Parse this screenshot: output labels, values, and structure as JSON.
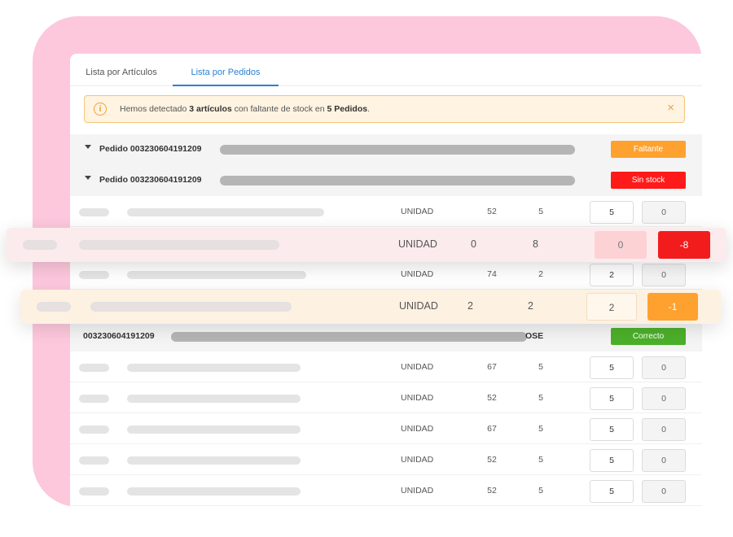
{
  "tabs": [
    {
      "label": "Lista por Artículos"
    },
    {
      "label": "Lista por Pedidos"
    }
  ],
  "alert": {
    "icon": "info-icon",
    "text_before": "Hemos detectado ",
    "count_bold": "3 artículos",
    "text_middle": " con faltante de stock en ",
    "orders_bold": "5 Pedidos",
    "text_after": ".",
    "close_icon": "×"
  },
  "orders": [
    {
      "label": "Pedido 003230604191209",
      "status": "Faltante",
      "status_color": "#ffa12f"
    },
    {
      "label": "Pedido 003230604191209",
      "status": "Sin stock",
      "status_color": "#ff1a1a"
    },
    {
      "label": "003230604191209",
      "suffix": "OSE",
      "status": "Correcto",
      "status_color": "#4caf2a"
    }
  ],
  "rows": [
    {
      "unit": "UNIDAD",
      "n1": "52",
      "n2": "5",
      "v1": "5",
      "v2": "0"
    },
    {
      "unit": "UNIDAD",
      "n1": "74",
      "n2": "2",
      "v1": "2",
      "v2": "0"
    },
    {
      "unit": "UNIDAD",
      "n1": "67",
      "n2": "5",
      "v1": "5",
      "v2": "0"
    },
    {
      "unit": "UNIDAD",
      "n1": "52",
      "n2": "5",
      "v1": "5",
      "v2": "0"
    },
    {
      "unit": "UNIDAD",
      "n1": "67",
      "n2": "5",
      "v1": "5",
      "v2": "0"
    },
    {
      "unit": "UNIDAD",
      "n1": "52",
      "n2": "5",
      "v1": "5",
      "v2": "0"
    },
    {
      "unit": "UNIDAD",
      "n1": "52",
      "n2": "5",
      "v1": "5",
      "v2": "0"
    }
  ],
  "highlight_red": {
    "unit": "UNIDAD",
    "n1": "0",
    "n2": "8",
    "v1": "0",
    "v2": "-8",
    "v1_bg": "#fcd2d5",
    "v2_bg": "#f21c1c"
  },
  "highlight_orange": {
    "unit": "UNIDAD",
    "n1": "2",
    "n2": "2",
    "v1": "2",
    "v2": "-1",
    "v2_bg": "#ffa12f"
  }
}
